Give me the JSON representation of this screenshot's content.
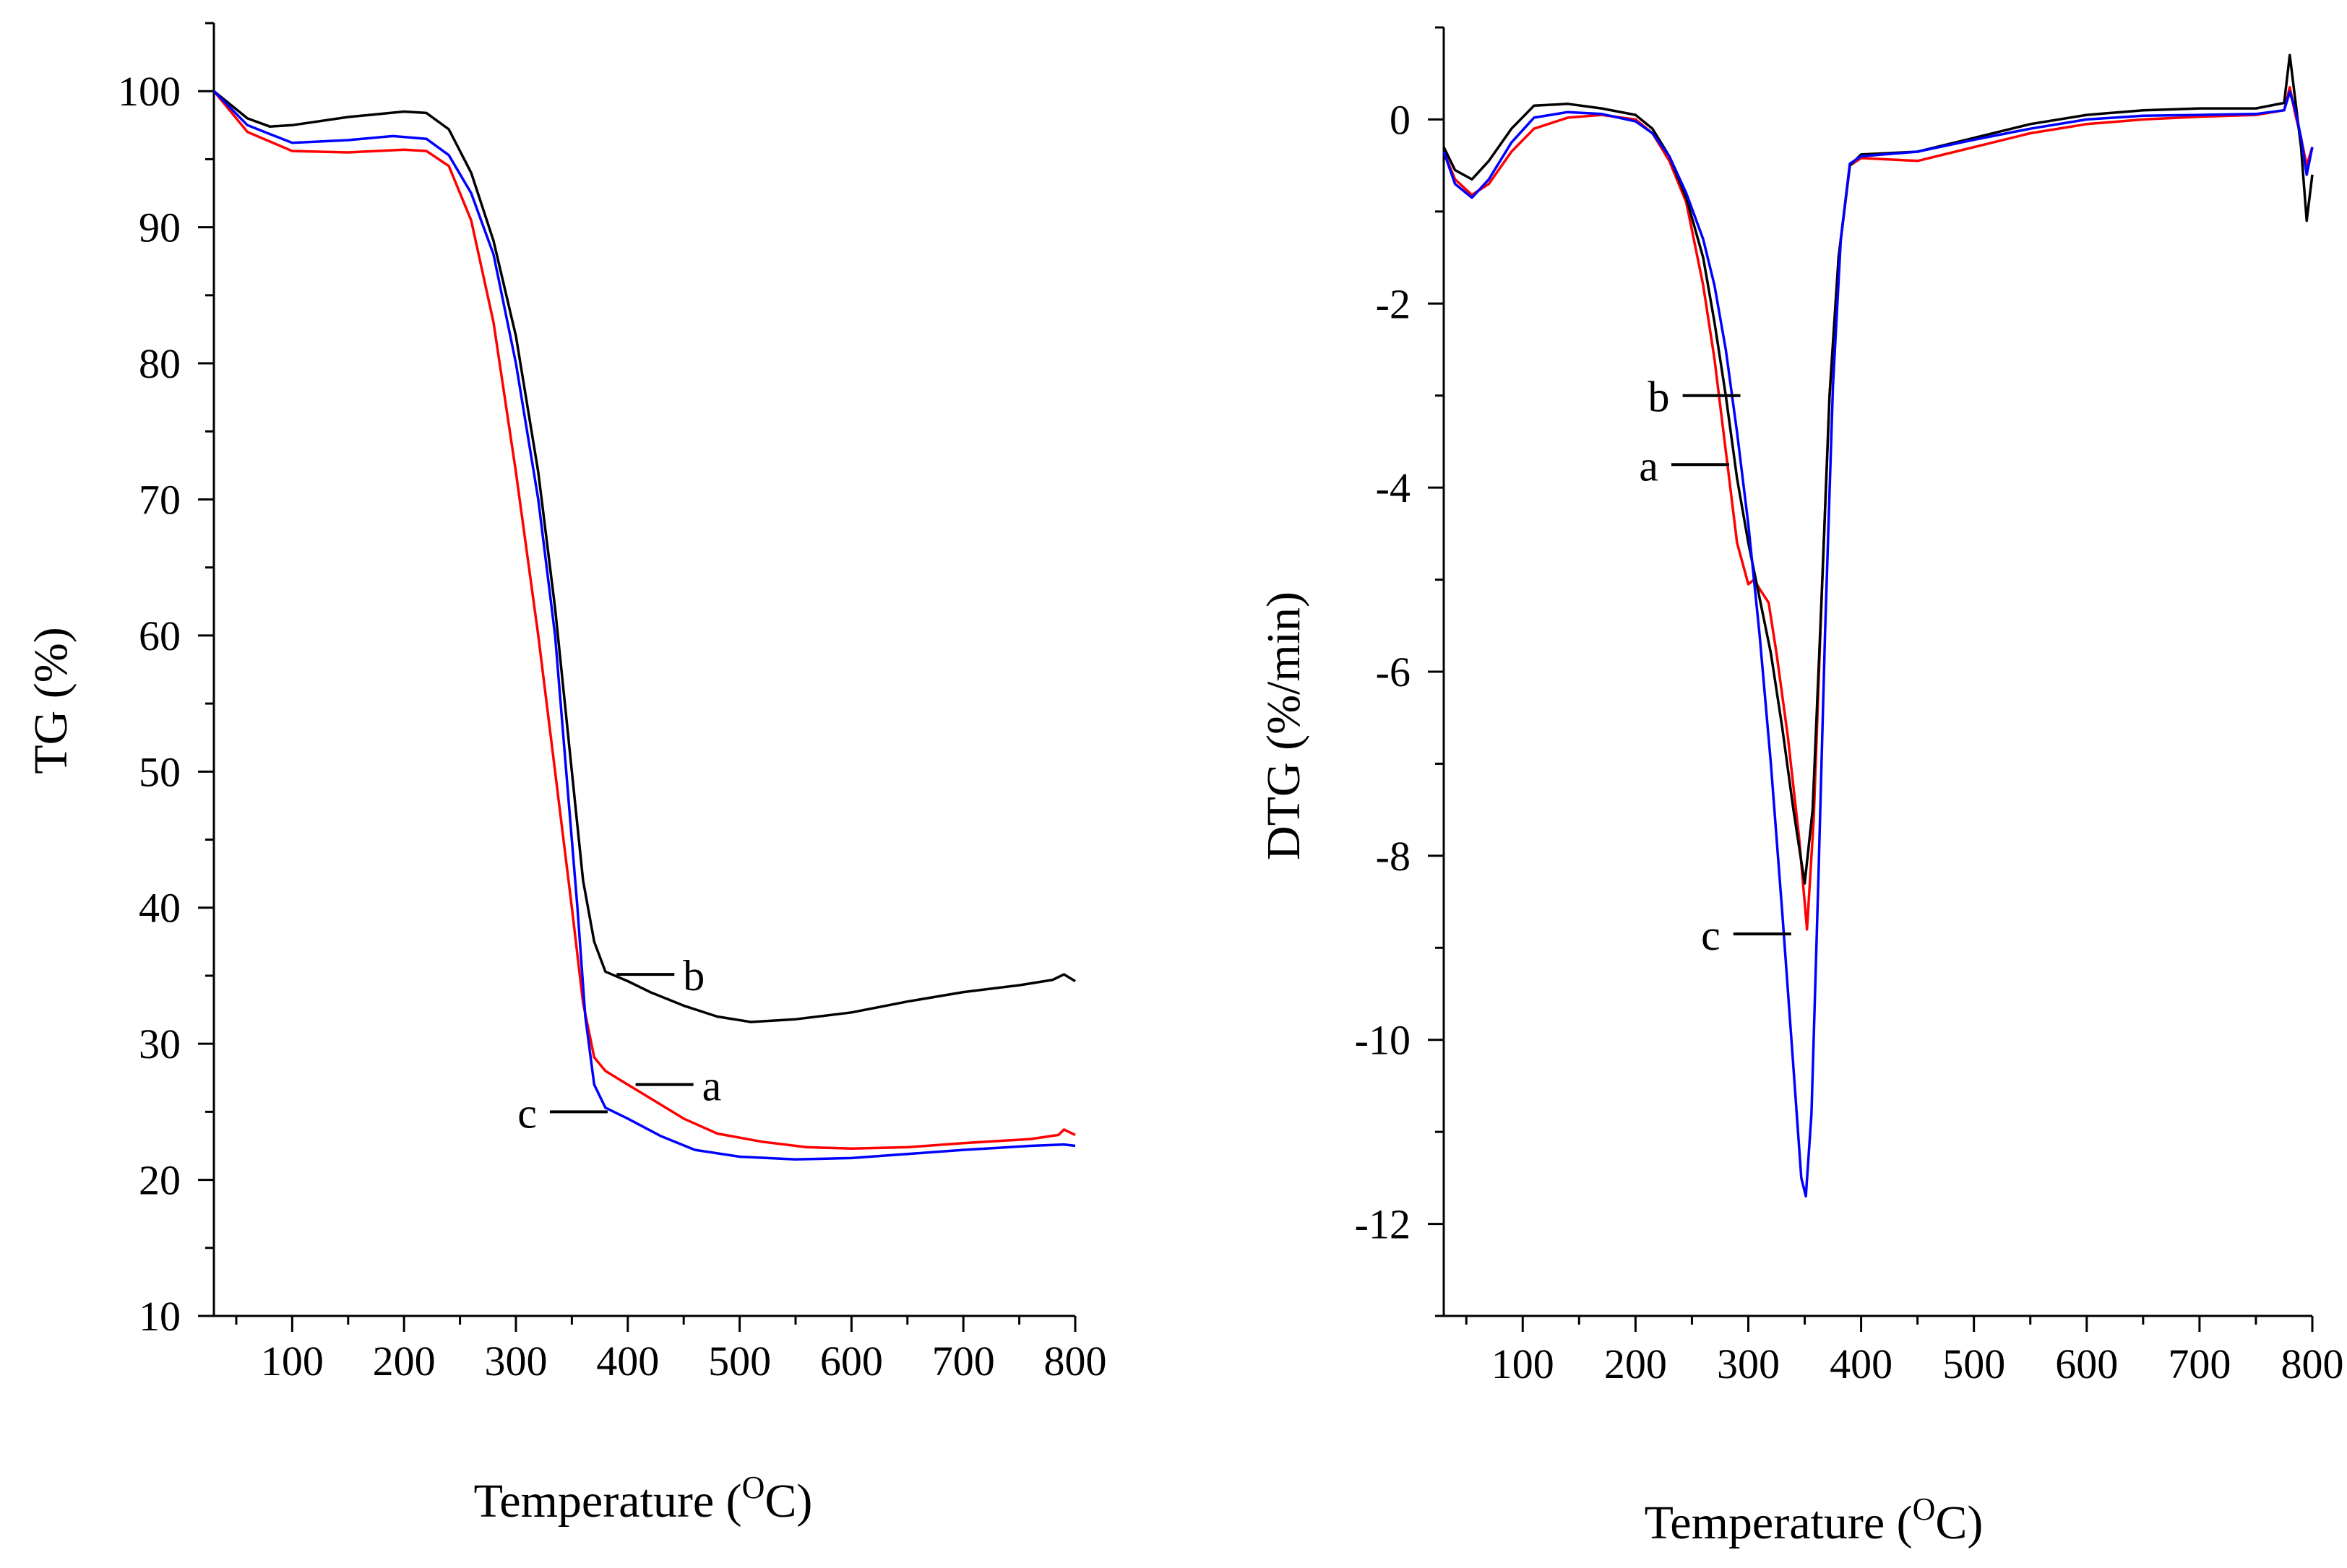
{
  "chart_data": [
    {
      "type": "line",
      "title": "",
      "xlabel": "Temperature",
      "xlabel_unit": "(°C)",
      "xlabel_sup": "O",
      "xlabel_unit_base": "C",
      "ylabel": "TG (%)",
      "xlim": [
        30,
        800
      ],
      "ylim": [
        10,
        105
      ],
      "xticks": [
        100,
        200,
        300,
        400,
        500,
        600,
        700,
        800
      ],
      "yticks": [
        10,
        20,
        30,
        40,
        50,
        60,
        70,
        80,
        90,
        100
      ],
      "grid": false,
      "series": [
        {
          "name": "a",
          "color": "#ff0000",
          "points": [
            [
              30,
              100
            ],
            [
              60,
              97
            ],
            [
              100,
              95.6
            ],
            [
              150,
              95.5
            ],
            [
              200,
              95.7
            ],
            [
              220,
              95.6
            ],
            [
              240,
              94.5
            ],
            [
              260,
              90.5
            ],
            [
              280,
              83
            ],
            [
              300,
              72
            ],
            [
              320,
              60
            ],
            [
              335,
              50
            ],
            [
              350,
              40
            ],
            [
              360,
              33
            ],
            [
              370,
              29
            ],
            [
              380,
              28
            ],
            [
              400,
              27
            ],
            [
              420,
              26
            ],
            [
              450,
              24.5
            ],
            [
              480,
              23.4
            ],
            [
              520,
              22.8
            ],
            [
              560,
              22.4
            ],
            [
              600,
              22.3
            ],
            [
              650,
              22.4
            ],
            [
              700,
              22.7
            ],
            [
              760,
              23
            ],
            [
              785,
              23.3
            ],
            [
              790,
              23.7
            ],
            [
              800,
              23.3
            ]
          ]
        },
        {
          "name": "b",
          "color": "#000000",
          "points": [
            [
              30,
              100
            ],
            [
              60,
              98
            ],
            [
              80,
              97.4
            ],
            [
              100,
              97.5
            ],
            [
              150,
              98.1
            ],
            [
              200,
              98.5
            ],
            [
              220,
              98.4
            ],
            [
              240,
              97.2
            ],
            [
              260,
              94
            ],
            [
              280,
              89
            ],
            [
              300,
              82
            ],
            [
              320,
              72
            ],
            [
              335,
              62
            ],
            [
              350,
              50
            ],
            [
              360,
              42
            ],
            [
              370,
              37.5
            ],
            [
              380,
              35.3
            ],
            [
              400,
              34.6
            ],
            [
              420,
              33.8
            ],
            [
              450,
              32.8
            ],
            [
              480,
              32
            ],
            [
              510,
              31.6
            ],
            [
              550,
              31.8
            ],
            [
              600,
              32.3
            ],
            [
              650,
              33.1
            ],
            [
              700,
              33.8
            ],
            [
              750,
              34.3
            ],
            [
              780,
              34.7
            ],
            [
              790,
              35.1
            ],
            [
              800,
              34.6
            ]
          ]
        },
        {
          "name": "c",
          "color": "#0000ff",
          "points": [
            [
              30,
              100
            ],
            [
              60,
              97.5
            ],
            [
              100,
              96.2
            ],
            [
              150,
              96.4
            ],
            [
              190,
              96.7
            ],
            [
              220,
              96.5
            ],
            [
              240,
              95.3
            ],
            [
              260,
              92.5
            ],
            [
              280,
              88
            ],
            [
              300,
              80
            ],
            [
              320,
              70
            ],
            [
              335,
              60
            ],
            [
              345,
              50
            ],
            [
              355,
              40
            ],
            [
              362,
              32
            ],
            [
              370,
              27
            ],
            [
              380,
              25.3
            ],
            [
              400,
              24.5
            ],
            [
              430,
              23.2
            ],
            [
              460,
              22.2
            ],
            [
              500,
              21.7
            ],
            [
              550,
              21.5
            ],
            [
              600,
              21.6
            ],
            [
              650,
              21.9
            ],
            [
              700,
              22.2
            ],
            [
              760,
              22.5
            ],
            [
              790,
              22.6
            ],
            [
              800,
              22.5
            ]
          ]
        }
      ],
      "annotations": [
        {
          "text": "b",
          "series": "b",
          "at": [
            390,
            35.1
          ]
        },
        {
          "text": "a",
          "series": "a",
          "at": [
            407,
            27
          ]
        },
        {
          "text": "c",
          "series": "c",
          "at": [
            382,
            25
          ]
        }
      ]
    },
    {
      "type": "line",
      "title": "",
      "xlabel": "Temperature",
      "xlabel_unit": "(°C)",
      "xlabel_sup": "O",
      "xlabel_unit_base": "C",
      "ylabel": "DTG (%/min)",
      "xlim": [
        30,
        800
      ],
      "ylim": [
        -13,
        1
      ],
      "xticks": [
        100,
        200,
        300,
        400,
        500,
        600,
        700,
        800
      ],
      "yticks": [
        -12,
        -10,
        -8,
        -6,
        -4,
        -2,
        0
      ],
      "grid": false,
      "series": [
        {
          "name": "a",
          "color": "#ff0000",
          "points": [
            [
              30,
              -0.35
            ],
            [
              40,
              -0.65
            ],
            [
              55,
              -0.82
            ],
            [
              70,
              -0.7
            ],
            [
              90,
              -0.35
            ],
            [
              110,
              -0.1
            ],
            [
              140,
              0.02
            ],
            [
              170,
              0.05
            ],
            [
              200,
              0
            ],
            [
              215,
              -0.15
            ],
            [
              230,
              -0.45
            ],
            [
              245,
              -0.9
            ],
            [
              260,
              -1.8
            ],
            [
              270,
              -2.6
            ],
            [
              280,
              -3.6
            ],
            [
              290,
              -4.6
            ],
            [
              300,
              -5.05
            ],
            [
              305,
              -5.0
            ],
            [
              310,
              -5.1
            ],
            [
              318,
              -5.25
            ],
            [
              325,
              -5.8
            ],
            [
              335,
              -6.7
            ],
            [
              345,
              -7.8
            ],
            [
              352,
              -8.8
            ],
            [
              358,
              -7.6
            ],
            [
              365,
              -5.2
            ],
            [
              372,
              -3.0
            ],
            [
              380,
              -1.5
            ],
            [
              390,
              -0.5
            ],
            [
              400,
              -0.42
            ],
            [
              450,
              -0.45
            ],
            [
              500,
              -0.3
            ],
            [
              550,
              -0.15
            ],
            [
              600,
              -0.05
            ],
            [
              650,
              0
            ],
            [
              700,
              0.03
            ],
            [
              750,
              0.05
            ],
            [
              775,
              0.1
            ],
            [
              780,
              0.35
            ],
            [
              785,
              0.05
            ],
            [
              790,
              -0.2
            ],
            [
              795,
              -0.5
            ],
            [
              800,
              -0.3
            ]
          ]
        },
        {
          "name": "b",
          "color": "#000000",
          "points": [
            [
              30,
              -0.3
            ],
            [
              40,
              -0.55
            ],
            [
              55,
              -0.65
            ],
            [
              70,
              -0.45
            ],
            [
              90,
              -0.1
            ],
            [
              110,
              0.15
            ],
            [
              140,
              0.17
            ],
            [
              170,
              0.12
            ],
            [
              200,
              0.05
            ],
            [
              215,
              -0.1
            ],
            [
              230,
              -0.4
            ],
            [
              245,
              -0.85
            ],
            [
              260,
              -1.5
            ],
            [
              270,
              -2.2
            ],
            [
              280,
              -3.0
            ],
            [
              290,
              -3.9
            ],
            [
              300,
              -4.6
            ],
            [
              310,
              -5.2
            ],
            [
              320,
              -5.8
            ],
            [
              330,
              -6.6
            ],
            [
              340,
              -7.5
            ],
            [
              350,
              -8.3
            ],
            [
              357,
              -7.5
            ],
            [
              365,
              -5.2
            ],
            [
              372,
              -3.0
            ],
            [
              380,
              -1.5
            ],
            [
              390,
              -0.5
            ],
            [
              400,
              -0.38
            ],
            [
              450,
              -0.35
            ],
            [
              500,
              -0.2
            ],
            [
              550,
              -0.05
            ],
            [
              600,
              0.05
            ],
            [
              650,
              0.1
            ],
            [
              700,
              0.12
            ],
            [
              750,
              0.12
            ],
            [
              775,
              0.18
            ],
            [
              780,
              0.7
            ],
            [
              785,
              0.2
            ],
            [
              790,
              -0.3
            ],
            [
              795,
              -1.1
            ],
            [
              800,
              -0.6
            ]
          ]
        },
        {
          "name": "c",
          "color": "#0000ff",
          "points": [
            [
              30,
              -0.35
            ],
            [
              40,
              -0.7
            ],
            [
              55,
              -0.85
            ],
            [
              70,
              -0.65
            ],
            [
              90,
              -0.25
            ],
            [
              110,
              0.02
            ],
            [
              140,
              0.08
            ],
            [
              170,
              0.06
            ],
            [
              200,
              -0.02
            ],
            [
              215,
              -0.15
            ],
            [
              230,
              -0.4
            ],
            [
              245,
              -0.8
            ],
            [
              260,
              -1.3
            ],
            [
              270,
              -1.8
            ],
            [
              280,
              -2.5
            ],
            [
              290,
              -3.4
            ],
            [
              300,
              -4.4
            ],
            [
              310,
              -5.6
            ],
            [
              320,
              -7.0
            ],
            [
              330,
              -8.6
            ],
            [
              340,
              -10.3
            ],
            [
              347,
              -11.5
            ],
            [
              351,
              -11.7
            ],
            [
              356,
              -10.8
            ],
            [
              362,
              -8.3
            ],
            [
              368,
              -5.6
            ],
            [
              375,
              -2.9
            ],
            [
              382,
              -1.3
            ],
            [
              390,
              -0.48
            ],
            [
              400,
              -0.4
            ],
            [
              450,
              -0.35
            ],
            [
              500,
              -0.22
            ],
            [
              550,
              -0.1
            ],
            [
              600,
              0
            ],
            [
              650,
              0.04
            ],
            [
              700,
              0.05
            ],
            [
              750,
              0.06
            ],
            [
              775,
              0.1
            ],
            [
              780,
              0.3
            ],
            [
              785,
              0.1
            ],
            [
              790,
              -0.2
            ],
            [
              795,
              -0.6
            ],
            [
              800,
              -0.3
            ]
          ]
        }
      ],
      "annotations": [
        {
          "text": "b",
          "series": "b",
          "at": [
            293,
            -3.0
          ]
        },
        {
          "text": "a",
          "series": "a",
          "at": [
            283,
            -3.75
          ]
        },
        {
          "text": "c",
          "series": "c",
          "at": [
            338,
            -8.85
          ]
        }
      ]
    }
  ]
}
